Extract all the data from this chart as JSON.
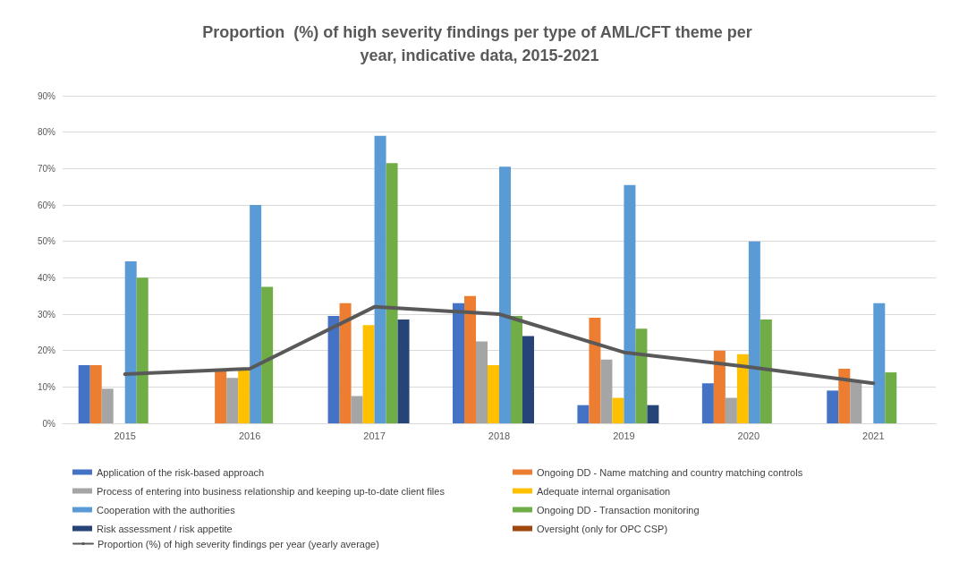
{
  "chart_data": {
    "type": "bar",
    "title": "Proportion  (%) of high severity findings per type of AML/CFT theme per year, indicative data, 2015-2021",
    "categories": [
      "2015",
      "2016",
      "2017",
      "2018",
      "2019",
      "2020",
      "2021"
    ],
    "series": [
      {
        "name": "Application of the risk-based approach",
        "color": "#4472c4",
        "values": [
          16,
          null,
          29.5,
          33,
          5,
          11,
          9
        ]
      },
      {
        "name": "Ongoing DD - Name matching and country matching controls",
        "color": "#ed7d31",
        "values": [
          16,
          15,
          33,
          35,
          29,
          20,
          15
        ]
      },
      {
        "name": "Process of entering into business relationship and keeping up-to-date client files",
        "color": "#a5a5a5",
        "values": [
          9.5,
          12.5,
          7.5,
          22.5,
          17.5,
          7,
          11.5
        ]
      },
      {
        "name": "Adequate internal organisation",
        "color": "#ffc000",
        "values": [
          null,
          15,
          27,
          16,
          7,
          19,
          null
        ]
      },
      {
        "name": "Cooperation with the authorities",
        "color": "#5b9bd5",
        "values": [
          44.5,
          60,
          79,
          70.5,
          65.5,
          50,
          33
        ]
      },
      {
        "name": "Ongoing DD - Transaction monitoring",
        "color": "#70ad47",
        "values": [
          40,
          37.5,
          71.5,
          29.5,
          26,
          28.5,
          14
        ]
      },
      {
        "name": "Risk assessment / risk appetite",
        "color": "#264478",
        "values": [
          null,
          null,
          28.5,
          24,
          5,
          null,
          null
        ]
      },
      {
        "name": "Oversight (only for OPC CSP)",
        "color": "#9e480e",
        "values": [
          null,
          null,
          null,
          null,
          null,
          null,
          null
        ]
      },
      {
        "name": "Proportion (%) of high severity findings per year (yearly average)",
        "type": "line",
        "color": "#595959",
        "values": [
          13.5,
          15,
          32,
          30,
          19.5,
          15.5,
          11
        ]
      }
    ],
    "ylim": [
      0,
      90
    ],
    "yticks": [
      {
        "value": 0,
        "label": "0%"
      },
      {
        "value": 10,
        "label": "10%"
      },
      {
        "value": 20,
        "label": "20%"
      },
      {
        "value": 30,
        "label": "30%"
      },
      {
        "value": 40,
        "label": "40%"
      },
      {
        "value": 50,
        "label": "50%"
      },
      {
        "value": 60,
        "label": "60%"
      },
      {
        "value": 70,
        "label": "70%"
      },
      {
        "value": 80,
        "label": "80%"
      },
      {
        "value": 90,
        "label": "90%"
      }
    ],
    "grid": "y",
    "legend": "bottom",
    "marker": "none"
  }
}
